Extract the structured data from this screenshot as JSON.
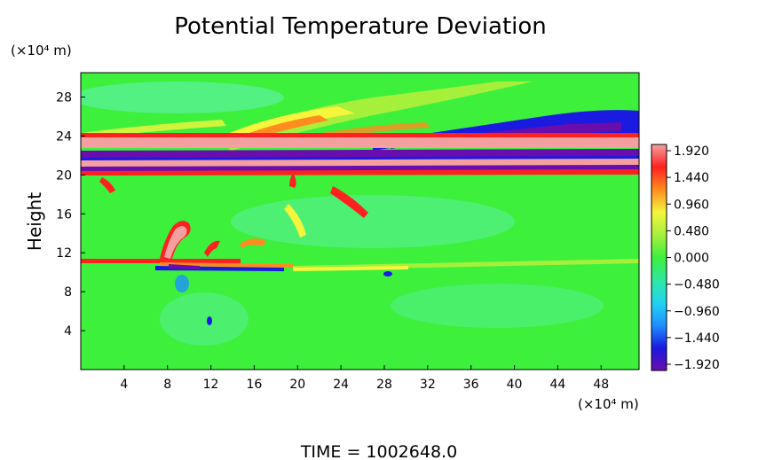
{
  "chart_data": {
    "type": "heatmap",
    "title": "Potential Temperature Deviation",
    "ylabel": "Height",
    "x_unit_label": "(×10⁴ m)",
    "y_unit_label": "(×10⁴ m)",
    "x_ticks": [
      "4",
      "8",
      "12",
      "16",
      "20",
      "24",
      "28",
      "32",
      "36",
      "40",
      "44",
      "48"
    ],
    "y_ticks": [
      "4",
      "8",
      "12",
      "16",
      "20",
      "24",
      "28"
    ],
    "xlim": [
      0,
      51.5
    ],
    "ylim": [
      0,
      30.5
    ],
    "colorbar_ticks": [
      "1.920",
      "1.440",
      "0.960",
      "0.480",
      "0.000",
      "−0.480",
      "−0.960",
      "−1.440",
      "−1.920"
    ],
    "colorbar_range": [
      -1.92,
      1.92
    ],
    "colors": [
      "#6a0dad",
      "#1a1ae0",
      "#1e90ff",
      "#22d3f0",
      "#2ee8a0",
      "#3cf03c",
      "#a6f03c",
      "#f5f53c",
      "#ff8c1e",
      "#ff2020",
      "#f4a0a0"
    ],
    "background_color": "#3cf03c",
    "time_label": "TIME",
    "time_value": "1002648.0"
  }
}
